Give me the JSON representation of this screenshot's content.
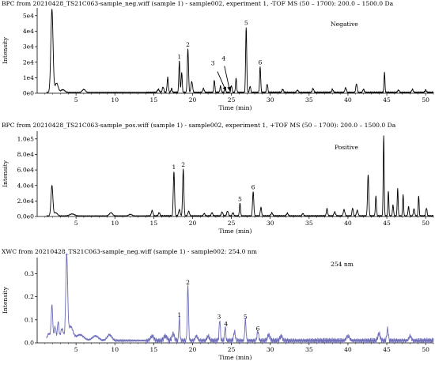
{
  "chart_data": [
    {
      "type": "line",
      "title": "BPC from 20210428_TS21C063-sample_neg.wiff (sample 1) - sample002, experiment 1, -TOF MS (50 – 1700): 200.0 – 1500.0 Da",
      "mode_label": "Negative",
      "xlabel": "Time (min)",
      "ylabel": "Intensity",
      "xlim": [
        0,
        51
      ],
      "ylim": [
        0,
        55000
      ],
      "x_ticks": [
        5,
        10,
        15,
        20,
        25,
        30,
        35,
        40,
        45,
        50
      ],
      "y_ticks": [
        0,
        10000,
        20000,
        30000,
        40000,
        50000
      ],
      "y_tick_labels": [
        "0e0",
        "1e4",
        "2e4",
        "3e4",
        "4e4",
        "5e4"
      ],
      "color": "#000000",
      "baseline": 500,
      "peaks": [
        [
          1.9,
          53500,
          0.14
        ],
        [
          2.5,
          6000,
          0.2
        ],
        [
          3.3,
          1800,
          0.25
        ],
        [
          6.0,
          2000,
          0.2
        ],
        [
          15.6,
          2000,
          0.12
        ],
        [
          16.2,
          3500,
          0.1
        ],
        [
          16.8,
          9500,
          0.08
        ],
        [
          17.3,
          2500,
          0.08
        ],
        [
          18.3,
          20000,
          0.07
        ],
        [
          18.6,
          13000,
          0.07
        ],
        [
          19.4,
          28000,
          0.08
        ],
        [
          19.9,
          7000,
          0.1
        ],
        [
          21.4,
          2500,
          0.1
        ],
        [
          22.8,
          8000,
          0.07
        ],
        [
          23.6,
          4000,
          0.08
        ],
        [
          24.2,
          2500,
          0.08
        ],
        [
          25.0,
          4500,
          0.08
        ],
        [
          25.6,
          9000,
          0.07
        ],
        [
          26.9,
          42000,
          0.07
        ],
        [
          27.4,
          4000,
          0.08
        ],
        [
          28.7,
          16500,
          0.07
        ],
        [
          29.6,
          5500,
          0.08
        ],
        [
          31.6,
          2000,
          0.1
        ],
        [
          33.5,
          1500,
          0.1
        ],
        [
          35.5,
          2500,
          0.1
        ],
        [
          38.0,
          2000,
          0.1
        ],
        [
          39.7,
          3000,
          0.1
        ],
        [
          41.1,
          5500,
          0.09
        ],
        [
          42.0,
          2000,
          0.1
        ],
        [
          44.7,
          13000,
          0.06
        ],
        [
          46.5,
          1500,
          0.1
        ],
        [
          48.3,
          2000,
          0.1
        ],
        [
          50.0,
          1500,
          0.1
        ]
      ],
      "peak_labels": [
        {
          "label": "1",
          "x": 18.3,
          "y": 20000
        },
        {
          "label": "2",
          "x": 19.4,
          "y": 28000
        },
        {
          "label": "3",
          "x": 22.6,
          "y": 16000
        },
        {
          "label": "4",
          "x": 24.0,
          "y": 19000
        },
        {
          "label": "5",
          "x": 26.9,
          "y": 42000
        },
        {
          "label": "6",
          "x": 28.7,
          "y": 16500
        }
      ],
      "arrows": [
        {
          "from": [
            23.2,
            14000
          ],
          "to": [
            24.3,
            1500
          ]
        },
        {
          "from": [
            24.1,
            17500
          ],
          "to": [
            24.8,
            1500
          ]
        }
      ]
    },
    {
      "type": "line",
      "title": "BPC from 20210428_TS21C063-sample_pos.wiff (sample 1) - sample002, experiment 1, +TOF MS (50 – 1700): 200.0 – 1500.0 Da",
      "mode_label": "Positive",
      "xlabel": "Time (min)",
      "ylabel": "Intensity",
      "xlim": [
        0,
        51
      ],
      "ylim": [
        0,
        110000
      ],
      "x_ticks": [
        5,
        10,
        15,
        20,
        25,
        30,
        35,
        40,
        45,
        50
      ],
      "y_ticks": [
        0,
        20000,
        40000,
        60000,
        80000,
        100000
      ],
      "y_tick_labels": [
        "0.0e0",
        "2.0e4",
        "4.0e4",
        "6.0e4",
        "8.0e4",
        "1.0e5"
      ],
      "color": "#000000",
      "baseline": 800,
      "peaks": [
        [
          1.9,
          39000,
          0.12
        ],
        [
          2.4,
          4000,
          0.2
        ],
        [
          4.5,
          2500,
          0.3
        ],
        [
          9.5,
          4000,
          0.2
        ],
        [
          12.0,
          2000,
          0.2
        ],
        [
          14.8,
          7000,
          0.1
        ],
        [
          15.7,
          4000,
          0.1
        ],
        [
          17.6,
          57000,
          0.08
        ],
        [
          18.3,
          8000,
          0.1
        ],
        [
          18.8,
          60000,
          0.08
        ],
        [
          19.5,
          6000,
          0.1
        ],
        [
          21.5,
          3000,
          0.1
        ],
        [
          22.5,
          4000,
          0.1
        ],
        [
          23.8,
          5000,
          0.1
        ],
        [
          24.5,
          6000,
          0.1
        ],
        [
          25.2,
          4000,
          0.1
        ],
        [
          26.1,
          16000,
          0.07
        ],
        [
          27.8,
          31000,
          0.08
        ],
        [
          28.8,
          11000,
          0.08
        ],
        [
          30.2,
          4000,
          0.1
        ],
        [
          32.2,
          3500,
          0.1
        ],
        [
          34.2,
          3000,
          0.1
        ],
        [
          37.3,
          9000,
          0.08
        ],
        [
          38.3,
          5000,
          0.1
        ],
        [
          39.5,
          8000,
          0.1
        ],
        [
          40.6,
          10000,
          0.08
        ],
        [
          41.2,
          7000,
          0.1
        ],
        [
          42.6,
          53000,
          0.08
        ],
        [
          43.6,
          25000,
          0.07
        ],
        [
          44.6,
          103000,
          0.06
        ],
        [
          45.2,
          32000,
          0.06
        ],
        [
          45.8,
          14000,
          0.07
        ],
        [
          46.4,
          35000,
          0.06
        ],
        [
          47.1,
          27000,
          0.06
        ],
        [
          47.8,
          12000,
          0.07
        ],
        [
          48.5,
          9000,
          0.08
        ],
        [
          49.1,
          26000,
          0.06
        ],
        [
          50.1,
          10000,
          0.08
        ]
      ],
      "peak_labels": [
        {
          "label": "1",
          "x": 17.6,
          "y": 57000
        },
        {
          "label": "2",
          "x": 18.8,
          "y": 60000
        },
        {
          "label": "5",
          "x": 26.1,
          "y": 16000
        },
        {
          "label": "6",
          "x": 27.8,
          "y": 31000
        }
      ],
      "arrows": []
    },
    {
      "type": "line",
      "title": "XWC from 20210428_TS21C063-sample_neg.wiff (sample 1) - sample002: 254.0 nm",
      "mode_label": "254 nm",
      "xlabel": "Time (min)",
      "ylabel": "Intensity",
      "xlim": [
        0,
        51
      ],
      "ylim": [
        0,
        0.37
      ],
      "x_ticks": [
        5,
        10,
        15,
        20,
        25,
        30,
        35,
        40,
        45,
        50
      ],
      "y_ticks": [
        0,
        0.1,
        0.2,
        0.3
      ],
      "y_tick_labels": [
        "0.0",
        "0.1",
        "0.2",
        "0.3"
      ],
      "color": "#6b6bb8",
      "baseline": 0.01,
      "peaks": [
        [
          1.5,
          0.03,
          0.2
        ],
        [
          1.9,
          0.15,
          0.1
        ],
        [
          2.3,
          0.06,
          0.12
        ],
        [
          2.7,
          0.08,
          0.1
        ],
        [
          3.2,
          0.05,
          0.2
        ],
        [
          3.8,
          0.36,
          0.12
        ],
        [
          4.3,
          0.06,
          0.3
        ],
        [
          5.5,
          0.025,
          0.5
        ],
        [
          7.5,
          0.02,
          0.4
        ],
        [
          9.3,
          0.025,
          0.3
        ],
        [
          14.8,
          0.02,
          0.2
        ],
        [
          16.5,
          0.02,
          0.2
        ],
        [
          17.5,
          0.03,
          0.15
        ],
        [
          18.3,
          0.1,
          0.07
        ],
        [
          19.4,
          0.24,
          0.08
        ],
        [
          20.5,
          0.02,
          0.15
        ],
        [
          22.0,
          0.02,
          0.15
        ],
        [
          23.5,
          0.09,
          0.08
        ],
        [
          24.2,
          0.06,
          0.08
        ],
        [
          25.4,
          0.04,
          0.1
        ],
        [
          26.8,
          0.09,
          0.08
        ],
        [
          28.4,
          0.04,
          0.1
        ],
        [
          29.8,
          0.025,
          0.15
        ],
        [
          31.4,
          0.02,
          0.15
        ],
        [
          40.0,
          0.02,
          0.2
        ],
        [
          44.0,
          0.03,
          0.15
        ],
        [
          45.1,
          0.05,
          0.1
        ],
        [
          48.0,
          0.02,
          0.15
        ]
      ],
      "peak_labels": [
        {
          "label": "1",
          "x": 18.3,
          "y": 0.1
        },
        {
          "label": "2",
          "x": 19.4,
          "y": 0.24
        },
        {
          "label": "3",
          "x": 23.4,
          "y": 0.09
        },
        {
          "label": "4",
          "x": 24.3,
          "y": 0.06
        },
        {
          "label": "5",
          "x": 26.8,
          "y": 0.09
        },
        {
          "label": "6",
          "x": 28.4,
          "y": 0.04
        }
      ],
      "arrows": []
    }
  ]
}
